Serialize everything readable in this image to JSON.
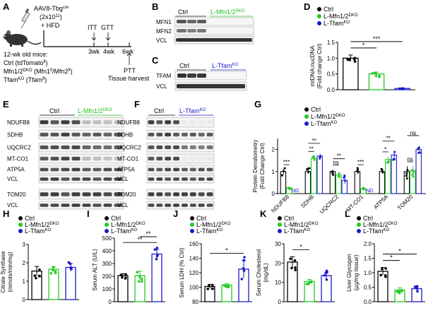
{
  "colors": {
    "ctrl": "#000000",
    "dko": "#22cc22",
    "tko": "#1a1acc"
  },
  "panel_letters": [
    "A",
    "B",
    "C",
    "D",
    "E",
    "F",
    "G",
    "H",
    "I",
    "J",
    "K",
    "L"
  ],
  "legend": {
    "ctrl": "Ctrl",
    "dko_main": "L-Mfn1/2",
    "dko_sup": "DKO",
    "tko_main": "L-Tfam",
    "tko_sup": "KO"
  },
  "panelA": {
    "virus": "AAV8-Tbg",
    "virus_sup": "cre",
    "dose": "(2x10",
    "dose_sup": "11",
    "dose_end": ")",
    "diet": "+ HFD",
    "mice_title": "12-wk old mice:",
    "line1": "Ctrl (tdTomato",
    "line1_sup": "fl",
    "line1_end": ")",
    "line2": "Mfn1/2",
    "line2_sup": "DKO",
    "line2_mid": " (Mfn1",
    "line2_sup2": "fl",
    "line2_mid2": "/Mfn2",
    "line2_sup3": "fl",
    "line2_end": ")",
    "line3": "Tfam",
    "line3_sup": "KO",
    "line3_mid": " (Tfam",
    "line3_sup2": "fl",
    "line3_end": ")",
    "itt": "ITT",
    "gtt": "GTT",
    "wk3": "3wk",
    "wk4": "4wk",
    "wk6": "6wk",
    "ptt": "PTT",
    "harvest": "Tissue harvest"
  },
  "panelB": {
    "ctrl": "Ctrl",
    "ko": "L-Mfn1/2",
    "ko_sup": "DKO",
    "bands": [
      "MFN1",
      "MFN2",
      "VCL"
    ]
  },
  "panelC": {
    "ctrl": "Ctrl",
    "ko": "L-Tfam",
    "ko_sup": "KO",
    "bands": [
      "TFAM",
      "VCL"
    ]
  },
  "panelE": {
    "ctrl": "Ctrl",
    "ko": "L-Mfn1/2",
    "ko_sup": "DKO",
    "bands": [
      "NDUFB8",
      "SDHB",
      "UQCRC2",
      "MT-CO1",
      "ATP5A",
      "VCL",
      "TOM20",
      "VCL"
    ]
  },
  "panelF": {
    "ctrl": "Ctrl",
    "ko": "L-Tfam",
    "ko_sup": "KO",
    "bands": [
      "NDUFB8",
      "SDHB",
      "UQCRC2",
      "MT-CO1",
      "ATP5A",
      "VCL",
      "TOM20",
      "VCL"
    ]
  },
  "chart_data": [
    {
      "id": "D",
      "type": "bar",
      "ylabel": "mtDNA:nucDNA",
      "ylabel2": "(Fold change Ctrl)",
      "ylim": [
        0,
        1.5
      ],
      "yticks": [
        "0.0",
        "0.5",
        "1.0",
        "1.5"
      ],
      "values": [
        1.0,
        0.5,
        0.04
      ],
      "errors": [
        0.1,
        0.06,
        0.02
      ],
      "sig": [
        {
          "a": 0,
          "b": 1,
          "label": "*"
        },
        {
          "a": 0,
          "b": 2,
          "label": "***"
        }
      ]
    },
    {
      "id": "G",
      "type": "bar",
      "ylabel": "Protein Densitometry",
      "ylabel2": "(Fold Change Ctrl)",
      "ylim": [
        0,
        2.5
      ],
      "yticks": [
        "0",
        "1",
        "2"
      ],
      "categories": [
        "NDUFB8",
        "SDHB",
        "UQCRC2",
        "MT-CO1",
        "ATP5A",
        "TOM20"
      ],
      "series": [
        {
          "name": "Ctrl",
          "values": [
            1.0,
            1.0,
            1.0,
            1.0,
            1.0,
            1.0
          ],
          "errors": [
            0.12,
            0.1,
            0.1,
            0.12,
            0.1,
            0.25
          ]
        },
        {
          "name": "L-Mfn1/2 DKO",
          "values": [
            0.25,
            1.6,
            0.85,
            0.22,
            1.55,
            1.05
          ],
          "errors": [
            0.05,
            0.12,
            0.1,
            0.05,
            0.15,
            0.2
          ]
        },
        {
          "name": "L-Tfam KO",
          "values": [
            0,
            1.7,
            0.6,
            0,
            1.75,
            2.0
          ],
          "errors": [
            0,
            0.1,
            0.15,
            0,
            0.15,
            0.15
          ]
        }
      ],
      "nd": "ND",
      "sig": [
        {
          "cat": 0,
          "a": 0,
          "b": 1,
          "label": "***"
        },
        {
          "cat": 1,
          "a": 0,
          "b": 1,
          "label": "**"
        },
        {
          "cat": 1,
          "a": 0,
          "b": 2,
          "label": "**"
        },
        {
          "cat": 2,
          "a": 0,
          "b": 1,
          "label": "ns"
        },
        {
          "cat": 2,
          "a": 0,
          "b": 2,
          "label": "**"
        },
        {
          "cat": 3,
          "a": 0,
          "b": 1,
          "label": "***"
        },
        {
          "cat": 4,
          "a": 0,
          "b": 1,
          "label": "*"
        },
        {
          "cat": 4,
          "a": 0,
          "b": 2,
          "label": "**"
        },
        {
          "cat": 5,
          "a": 0,
          "b": 1,
          "label": "ns"
        },
        {
          "cat": 5,
          "a": 0,
          "b": 2,
          "label": "ns"
        }
      ]
    },
    {
      "id": "H",
      "type": "bar",
      "ylabel": "Citrate Synthase",
      "ylabel2": "(mmols/min/mg)",
      "ylim": [
        0,
        3
      ],
      "yticks": [
        "0",
        "1",
        "2",
        "3"
      ],
      "values": [
        1.55,
        1.65,
        1.75
      ],
      "errors": [
        0.25,
        0.15,
        0.2
      ],
      "sig": []
    },
    {
      "id": "I",
      "type": "bar",
      "ylabel": "Serum ALT (U/L)",
      "ylim": [
        0,
        500
      ],
      "yticks": [
        "0",
        "100",
        "200",
        "300",
        "400",
        "500"
      ],
      "values": [
        205,
        205,
        375
      ],
      "errors": [
        15,
        35,
        35
      ],
      "sig": [
        {
          "a": 0,
          "b": 2,
          "label": "**"
        },
        {
          "a": 1,
          "b": 2,
          "label": "**"
        }
      ]
    },
    {
      "id": "J",
      "type": "bar",
      "ylabel": "Serum LDH (% Ctrl)",
      "ylim": [
        80,
        160
      ],
      "yticks": [
        "80",
        "100",
        "120",
        "140",
        "160"
      ],
      "values": [
        101,
        103,
        125
      ],
      "errors": [
        3,
        2,
        12
      ],
      "sig": [
        {
          "a": 0,
          "b": 2,
          "label": "*"
        }
      ]
    },
    {
      "id": "K",
      "type": "bar",
      "ylabel": "Serum Cholesterol",
      "ylabel2": "(mg/dL)",
      "ylim": [
        0,
        30
      ],
      "yticks": [
        "0",
        "10",
        "20",
        "30"
      ],
      "values": [
        20.5,
        10.5,
        13.5
      ],
      "errors": [
        2.8,
        1.0,
        1.8
      ],
      "sig": [
        {
          "a": 0,
          "b": 1,
          "label": "*"
        }
      ]
    },
    {
      "id": "L",
      "type": "bar",
      "ylabel": "Liver Glycogen",
      "ylabel2": "(µg/mg tissue)",
      "ylim": [
        0,
        2.0
      ],
      "yticks": [
        "0.0",
        "0.5",
        "1.0",
        "1.5",
        "2.0"
      ],
      "values": [
        1.05,
        0.4,
        0.45
      ],
      "errors": [
        0.13,
        0.08,
        0.08
      ],
      "sig": [
        {
          "a": 0,
          "b": 1,
          "label": "*"
        },
        {
          "a": 0,
          "b": 2,
          "label": "*"
        }
      ]
    }
  ]
}
